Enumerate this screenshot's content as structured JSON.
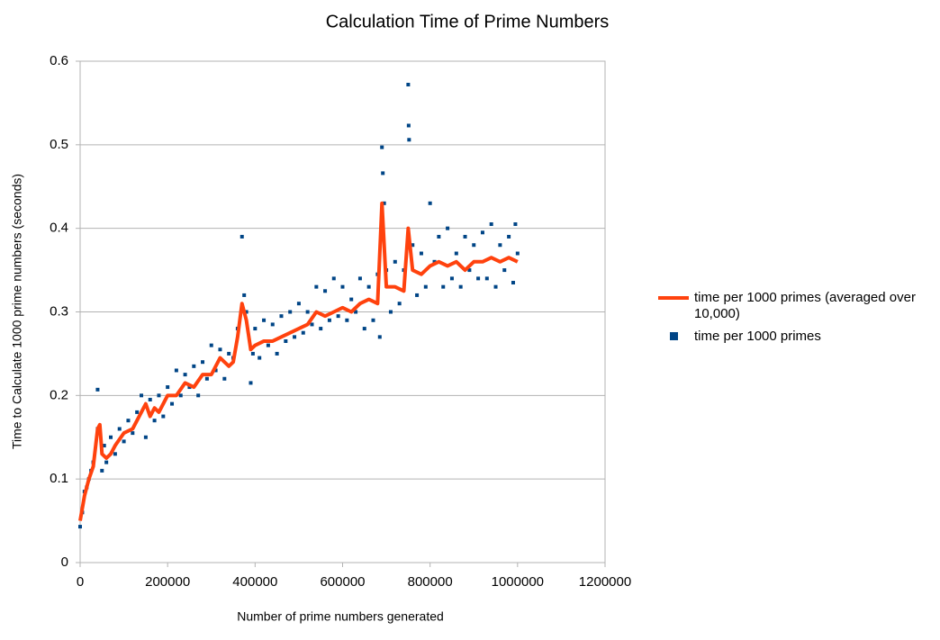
{
  "chart_data": {
    "type": "scatter",
    "title": "Calculation Time of Prime Numbers",
    "x_label": "Number of prime numbers generated",
    "y_label": "Time to Calculate 1000 prime numbers (seconds)",
    "xlim": [
      0,
      1200000
    ],
    "ylim": [
      0,
      0.6
    ],
    "xticks": [
      0,
      200000,
      400000,
      600000,
      800000,
      1000000,
      1200000
    ],
    "yticks": [
      0,
      0.1,
      0.2,
      0.3,
      0.4,
      0.5,
      0.6
    ],
    "grid": true,
    "legend": "right",
    "series": [
      {
        "name": "time per 1000 primes (averaged over 10,000)",
        "type": "line",
        "color": "#ff420e",
        "x": [
          0,
          10000,
          20000,
          30000,
          40000,
          45000,
          50000,
          60000,
          70000,
          80000,
          100000,
          120000,
          140000,
          150000,
          160000,
          170000,
          180000,
          200000,
          220000,
          240000,
          260000,
          280000,
          300000,
          320000,
          340000,
          350000,
          360000,
          370000,
          380000,
          390000,
          400000,
          420000,
          440000,
          460000,
          480000,
          500000,
          520000,
          540000,
          560000,
          580000,
          600000,
          620000,
          640000,
          660000,
          680000,
          690000,
          700000,
          720000,
          740000,
          750000,
          760000,
          780000,
          800000,
          820000,
          840000,
          860000,
          880000,
          900000,
          920000,
          940000,
          960000,
          980000,
          1000000
        ],
        "values": [
          0.05,
          0.08,
          0.1,
          0.115,
          0.16,
          0.165,
          0.13,
          0.125,
          0.13,
          0.14,
          0.155,
          0.16,
          0.18,
          0.19,
          0.175,
          0.185,
          0.18,
          0.2,
          0.2,
          0.215,
          0.21,
          0.225,
          0.225,
          0.245,
          0.235,
          0.24,
          0.27,
          0.31,
          0.29,
          0.255,
          0.26,
          0.265,
          0.265,
          0.27,
          0.275,
          0.28,
          0.285,
          0.3,
          0.295,
          0.3,
          0.305,
          0.3,
          0.31,
          0.315,
          0.31,
          0.43,
          0.33,
          0.33,
          0.325,
          0.4,
          0.35,
          0.345,
          0.355,
          0.36,
          0.355,
          0.36,
          0.35,
          0.36,
          0.36,
          0.365,
          0.36,
          0.365,
          0.36
        ]
      },
      {
        "name": "time per 1000 primes",
        "type": "scatter",
        "color": "#004586",
        "x": [
          0,
          5000,
          10000,
          15000,
          20000,
          25000,
          30000,
          40000,
          40000,
          50000,
          55000,
          60000,
          70000,
          80000,
          90000,
          100000,
          110000,
          120000,
          130000,
          140000,
          150000,
          160000,
          170000,
          180000,
          190000,
          200000,
          210000,
          220000,
          230000,
          240000,
          250000,
          260000,
          270000,
          280000,
          290000,
          300000,
          310000,
          320000,
          330000,
          340000,
          350000,
          360000,
          370000,
          375000,
          380000,
          390000,
          395000,
          400000,
          410000,
          420000,
          430000,
          440000,
          450000,
          460000,
          470000,
          480000,
          490000,
          500000,
          510000,
          520000,
          530000,
          540000,
          550000,
          560000,
          570000,
          580000,
          590000,
          600000,
          610000,
          620000,
          630000,
          640000,
          650000,
          660000,
          670000,
          680000,
          685000,
          690000,
          692000,
          695000,
          700000,
          710000,
          720000,
          730000,
          740000,
          750000,
          751000,
          752000,
          760000,
          770000,
          780000,
          790000,
          800000,
          810000,
          820000,
          830000,
          840000,
          850000,
          860000,
          870000,
          880000,
          890000,
          900000,
          910000,
          920000,
          930000,
          940000,
          950000,
          960000,
          970000,
          980000,
          990000,
          995000,
          1000000
        ],
        "values": [
          0.043,
          0.06,
          0.085,
          0.09,
          0.1,
          0.11,
          0.12,
          0.207,
          0.16,
          0.11,
          0.14,
          0.12,
          0.15,
          0.13,
          0.16,
          0.145,
          0.17,
          0.155,
          0.18,
          0.2,
          0.15,
          0.195,
          0.17,
          0.2,
          0.175,
          0.21,
          0.19,
          0.23,
          0.2,
          0.225,
          0.21,
          0.235,
          0.2,
          0.24,
          0.22,
          0.26,
          0.23,
          0.255,
          0.22,
          0.25,
          0.245,
          0.28,
          0.39,
          0.32,
          0.3,
          0.215,
          0.25,
          0.28,
          0.245,
          0.29,
          0.26,
          0.285,
          0.25,
          0.295,
          0.265,
          0.3,
          0.27,
          0.31,
          0.275,
          0.3,
          0.285,
          0.33,
          0.28,
          0.325,
          0.29,
          0.34,
          0.295,
          0.33,
          0.29,
          0.315,
          0.3,
          0.34,
          0.28,
          0.33,
          0.29,
          0.345,
          0.27,
          0.497,
          0.466,
          0.43,
          0.35,
          0.3,
          0.36,
          0.31,
          0.35,
          0.572,
          0.523,
          0.506,
          0.38,
          0.32,
          0.37,
          0.33,
          0.43,
          0.36,
          0.39,
          0.33,
          0.4,
          0.34,
          0.37,
          0.33,
          0.39,
          0.35,
          0.38,
          0.34,
          0.395,
          0.34,
          0.405,
          0.33,
          0.38,
          0.35,
          0.39,
          0.335,
          0.405,
          0.37
        ]
      }
    ]
  }
}
